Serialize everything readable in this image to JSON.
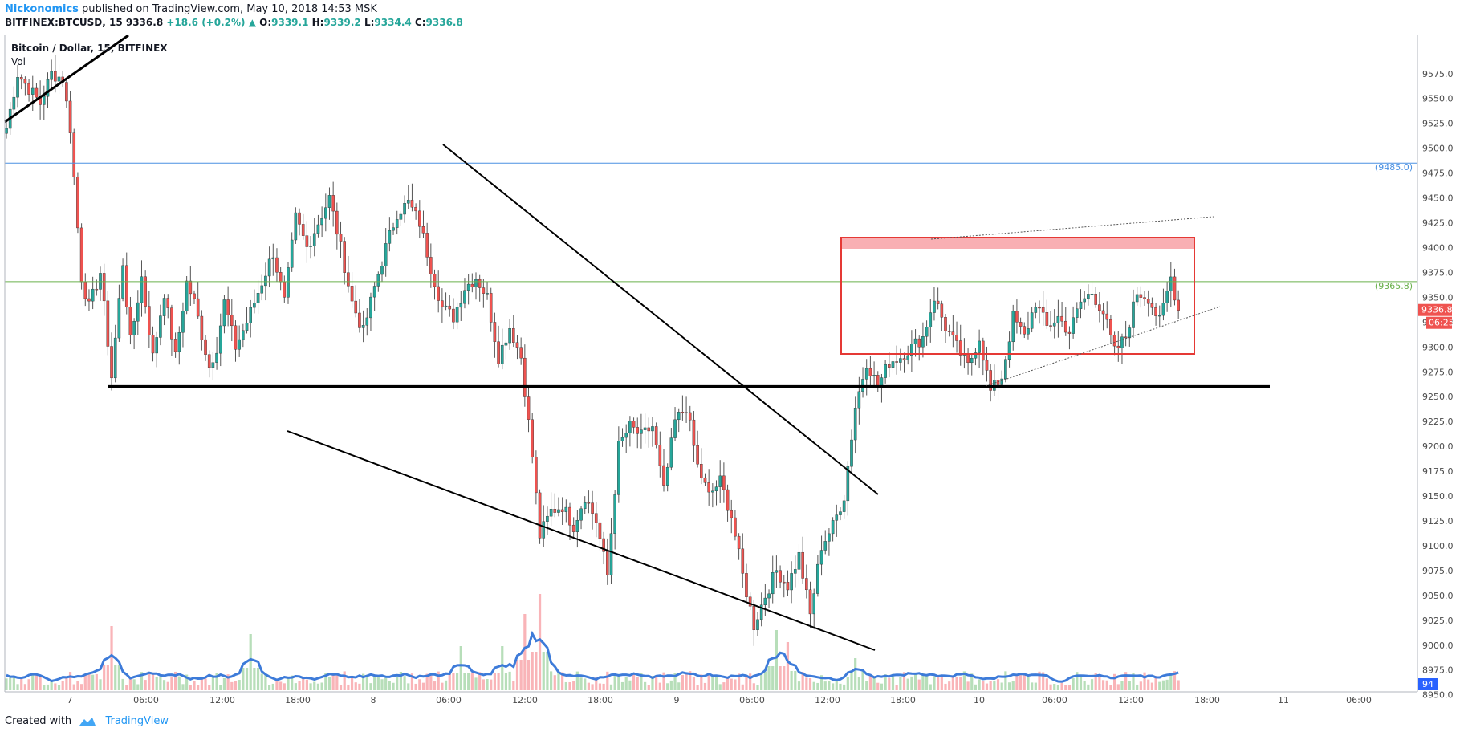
{
  "header": {
    "author": "Nickonomics",
    "published_text": "published on TradingView.com, May 10, 2018 14:53 MSK",
    "symbol_line": "BITFINEX:BTCUSD, 15",
    "last_price": "9336.8",
    "change": "+18.6 (+0.2%)",
    "o_label": "O:",
    "o_value": "9339.1",
    "h_label": "H:",
    "h_value": "9339.2",
    "l_label": "L:",
    "l_value": "9334.4",
    "c_label": "C:",
    "c_value": "9336.8"
  },
  "legend": {
    "series_title": "Bitcoin / Dollar, 15, BITFINEX",
    "volume_title": "Vol"
  },
  "footer": {
    "created_with": "Created with",
    "brand": "TradingView"
  },
  "chart_data": {
    "type": "candlestick",
    "x_tick_labels": [
      "7",
      "06:00",
      "12:00",
      "18:00",
      "8",
      "06:00",
      "12:00",
      "18:00",
      "9",
      "06:00",
      "12:00",
      "18:00",
      "10",
      "06:00",
      "12:00",
      "18:00",
      "11",
      "06:00"
    ],
    "y_tick_labels": [
      "9575.0",
      "9550.0",
      "9525.0",
      "9500.0",
      "9475.0",
      "9450.0",
      "9425.0",
      "9400.0",
      "9375.0",
      "9350.0",
      "9325.0",
      "9300.0",
      "9275.0",
      "9250.0",
      "9225.0",
      "9200.0",
      "9175.0",
      "9150.0",
      "9125.0",
      "9100.0",
      "9075.0",
      "9050.0",
      "9025.0",
      "9000.0",
      "8975.0",
      "8950.0"
    ],
    "ylim": [
      8925,
      9580
    ],
    "horizontal_levels": [
      {
        "value": 9485.0,
        "label": "(9485.0)",
        "color": "#4a90e2"
      },
      {
        "value": 9365.8,
        "label": "(9365.8)",
        "color": "#6ab04c"
      }
    ],
    "support_level": 9260,
    "last_price_label": "9336.8",
    "countdown_label": "06:25",
    "volume_label": "94",
    "colors": {
      "up": "#26a69a",
      "down": "#ef5350",
      "last_price": "#ef5350",
      "volume_ma": "#3d7bd9"
    },
    "anchors": [
      [
        0,
        9520
      ],
      [
        3,
        9575
      ],
      [
        6,
        9560
      ],
      [
        9,
        9545
      ],
      [
        12,
        9575
      ],
      [
        15,
        9570
      ],
      [
        17,
        9520
      ],
      [
        18,
        9470
      ],
      [
        20,
        9370
      ],
      [
        22,
        9340
      ],
      [
        25,
        9375
      ],
      [
        28,
        9270
      ],
      [
        31,
        9385
      ],
      [
        33,
        9305
      ],
      [
        36,
        9370
      ],
      [
        39,
        9290
      ],
      [
        42,
        9355
      ],
      [
        45,
        9290
      ],
      [
        48,
        9365
      ],
      [
        50,
        9345
      ],
      [
        54,
        9280
      ],
      [
        56,
        9300
      ],
      [
        58,
        9345
      ],
      [
        61,
        9300
      ],
      [
        64,
        9325
      ],
      [
        68,
        9365
      ],
      [
        71,
        9395
      ],
      [
        74,
        9345
      ],
      [
        77,
        9430
      ],
      [
        80,
        9400
      ],
      [
        83,
        9425
      ],
      [
        86,
        9450
      ],
      [
        89,
        9400
      ],
      [
        92,
        9345
      ],
      [
        95,
        9315
      ],
      [
        98,
        9360
      ],
      [
        101,
        9400
      ],
      [
        104,
        9435
      ],
      [
        107,
        9445
      ],
      [
        110,
        9425
      ],
      [
        113,
        9380
      ],
      [
        116,
        9340
      ],
      [
        119,
        9330
      ],
      [
        122,
        9360
      ],
      [
        125,
        9370
      ],
      [
        128,
        9350
      ],
      [
        131,
        9290
      ],
      [
        134,
        9320
      ],
      [
        137,
        9290
      ],
      [
        140,
        9190
      ],
      [
        142,
        9110
      ],
      [
        145,
        9135
      ],
      [
        148,
        9140
      ],
      [
        151,
        9120
      ],
      [
        154,
        9150
      ],
      [
        157,
        9125
      ],
      [
        160,
        9070
      ],
      [
        163,
        9200
      ],
      [
        166,
        9220
      ],
      [
        169,
        9210
      ],
      [
        172,
        9220
      ],
      [
        175,
        9155
      ],
      [
        178,
        9225
      ],
      [
        181,
        9240
      ],
      [
        184,
        9180
      ],
      [
        187,
        9150
      ],
      [
        190,
        9165
      ],
      [
        193,
        9130
      ],
      [
        196,
        9070
      ],
      [
        199,
        9020
      ],
      [
        202,
        9050
      ],
      [
        205,
        9075
      ],
      [
        208,
        9060
      ],
      [
        211,
        9090
      ],
      [
        214,
        9030
      ],
      [
        217,
        9100
      ],
      [
        220,
        9120
      ],
      [
        223,
        9150
      ],
      [
        226,
        9240
      ],
      [
        229,
        9285
      ],
      [
        232,
        9260
      ],
      [
        235,
        9285
      ],
      [
        238,
        9290
      ],
      [
        241,
        9300
      ],
      [
        244,
        9310
      ],
      [
        247,
        9350
      ],
      [
        250,
        9320
      ],
      [
        253,
        9300
      ],
      [
        256,
        9280
      ],
      [
        259,
        9310
      ],
      [
        262,
        9255
      ],
      [
        265,
        9270
      ],
      [
        268,
        9330
      ],
      [
        271,
        9310
      ],
      [
        274,
        9345
      ],
      [
        277,
        9320
      ],
      [
        280,
        9330
      ],
      [
        283,
        9315
      ],
      [
        286,
        9345
      ],
      [
        289,
        9355
      ],
      [
        292,
        9335
      ],
      [
        295,
        9295
      ],
      [
        298,
        9310
      ],
      [
        301,
        9355
      ],
      [
        304,
        9350
      ],
      [
        307,
        9325
      ],
      [
        310,
        9370
      ],
      [
        312,
        9336.8
      ]
    ]
  }
}
